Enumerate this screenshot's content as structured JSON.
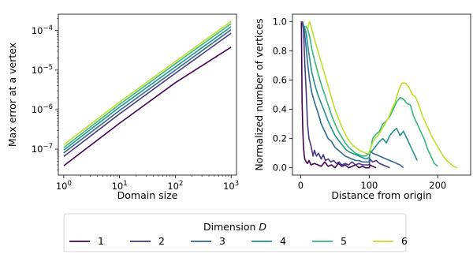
{
  "colors": [
    "#440154",
    "#443983",
    "#31688e",
    "#21918c",
    "#35b779",
    "#bddf26"
  ],
  "legend": {
    "title": "Dimension ",
    "title_symbol": "D",
    "entries": [
      "1",
      "2",
      "3",
      "4",
      "5",
      "6"
    ]
  },
  "chart_data": [
    {
      "type": "line",
      "xlabel": "Domain size",
      "ylabel": "Max error at a vertex",
      "xscale": "log",
      "yscale": "log",
      "xlim": [
        0.8,
        1250
      ],
      "ylim": [
        2.2e-08,
        0.00026
      ],
      "xtick_labels": [
        {
          "value": 1,
          "base": "10",
          "exp": "0"
        },
        {
          "value": 10,
          "base": "10",
          "exp": "1"
        },
        {
          "value": 100,
          "base": "10",
          "exp": "2"
        },
        {
          "value": 1000,
          "base": "10",
          "exp": "3"
        }
      ],
      "ytick_labels": [
        {
          "value": 1e-07,
          "base": "10",
          "exp": "−7"
        },
        {
          "value": 1e-06,
          "base": "10",
          "exp": "−6"
        },
        {
          "value": 1e-05,
          "base": "10",
          "exp": "−5"
        },
        {
          "value": 0.0001,
          "base": "10",
          "exp": "−4"
        }
      ],
      "series": [
        {
          "name": "1",
          "x": [
            1,
            10,
            100,
            1000
          ],
          "y": [
            3.8e-08,
            4.5e-07,
            4.8e-06,
            3.8e-05
          ]
        },
        {
          "name": "2",
          "x": [
            1,
            10,
            100,
            1000
          ],
          "y": [
            6.5e-08,
            7.8e-07,
            8.3e-06,
            8.6e-05
          ]
        },
        {
          "name": "3",
          "x": [
            1,
            10,
            100,
            1000
          ],
          "y": [
            8e-08,
            9.5e-07,
            1e-05,
            0.000105
          ]
        },
        {
          "name": "4",
          "x": [
            1,
            10,
            100,
            1000
          ],
          "y": [
            9.5e-08,
            1.15e-06,
            1.2e-05,
            0.000125
          ]
        },
        {
          "name": "5",
          "x": [
            1,
            10,
            100,
            1000
          ],
          "y": [
            1.1e-07,
            1.35e-06,
            1.45e-05,
            0.00015
          ]
        },
        {
          "name": "6",
          "x": [
            1,
            10,
            100,
            1000
          ],
          "y": [
            1.3e-07,
            1.55e-06,
            1.65e-05,
            0.00017
          ]
        }
      ]
    },
    {
      "type": "line",
      "xlabel": "Distance from origin",
      "ylabel": "Normalized number of vertices",
      "xlim": [
        -12,
        248
      ],
      "ylim": [
        -0.05,
        1.05
      ],
      "xticks": [
        0,
        100,
        200
      ],
      "yticks": [
        0.0,
        0.2,
        0.4,
        0.6,
        0.8,
        1.0
      ],
      "ytick_labels": [
        "0.0",
        "0.2",
        "0.4",
        "0.6",
        "0.8",
        "1.0"
      ],
      "series": [
        {
          "name": "1",
          "x": [
            1,
            2,
            3,
            4,
            5,
            6,
            8,
            10,
            12,
            15,
            20,
            25,
            30,
            35,
            40,
            45,
            50,
            55,
            60,
            65,
            70,
            75,
            80,
            85,
            90,
            95,
            100,
            101,
            105,
            110
          ],
          "y": [
            1.0,
            0.45,
            0.28,
            0.15,
            0.09,
            0.06,
            0.04,
            0.03,
            0.05,
            0.02,
            0.03,
            0.02,
            0.01,
            0.04,
            0.01,
            0.02,
            0.0,
            0.03,
            0.01,
            0.02,
            0.0,
            0.01,
            0.02,
            0.0,
            0.01,
            0.0,
            0.0,
            0.02,
            0.01,
            0.0
          ]
        },
        {
          "name": "2",
          "x": [
            2,
            4,
            6,
            8,
            10,
            12,
            15,
            18,
            20,
            23,
            26,
            30,
            33,
            36,
            40,
            44,
            48,
            52,
            56,
            60,
            65,
            70,
            75,
            80,
            85,
            90,
            95,
            100,
            101,
            105,
            110,
            115,
            120,
            125,
            130
          ],
          "y": [
            1.0,
            0.95,
            0.72,
            0.52,
            0.3,
            0.2,
            0.15,
            0.08,
            0.12,
            0.08,
            0.1,
            0.06,
            0.09,
            0.05,
            0.06,
            0.04,
            0.05,
            0.03,
            0.04,
            0.02,
            0.03,
            0.02,
            0.04,
            0.02,
            0.03,
            0.02,
            0.02,
            0.02,
            0.06,
            0.04,
            0.05,
            0.03,
            0.02,
            0.01,
            0.0
          ]
        },
        {
          "name": "3",
          "x": [
            3,
            5,
            8,
            10,
            13,
            16,
            20,
            25,
            30,
            35,
            40,
            45,
            50,
            55,
            60,
            65,
            70,
            75,
            80,
            85,
            90,
            95,
            100,
            101,
            105,
            110,
            115,
            120,
            125,
            130,
            135,
            140,
            145,
            150
          ],
          "y": [
            1.0,
            0.95,
            0.82,
            0.72,
            0.6,
            0.52,
            0.45,
            0.38,
            0.3,
            0.25,
            0.2,
            0.18,
            0.14,
            0.12,
            0.1,
            0.08,
            0.07,
            0.06,
            0.05,
            0.05,
            0.04,
            0.04,
            0.04,
            0.12,
            0.1,
            0.09,
            0.08,
            0.07,
            0.06,
            0.05,
            0.04,
            0.03,
            0.02,
            0.0
          ]
        },
        {
          "name": "4",
          "x": [
            5,
            8,
            10,
            13,
            16,
            20,
            25,
            30,
            35,
            40,
            45,
            50,
            55,
            60,
            65,
            70,
            75,
            80,
            85,
            90,
            95,
            100,
            101,
            105,
            110,
            115,
            120,
            125,
            130,
            135,
            140,
            145,
            150,
            155,
            160,
            165,
            170
          ],
          "y": [
            0.97,
            0.92,
            0.85,
            0.75,
            0.66,
            0.58,
            0.5,
            0.44,
            0.38,
            0.32,
            0.27,
            0.22,
            0.19,
            0.16,
            0.13,
            0.11,
            0.1,
            0.09,
            0.08,
            0.07,
            0.06,
            0.07,
            0.1,
            0.12,
            0.15,
            0.18,
            0.2,
            0.17,
            0.22,
            0.25,
            0.27,
            0.22,
            0.25,
            0.2,
            0.15,
            0.1,
            0.05
          ]
        },
        {
          "name": "5",
          "x": [
            7,
            10,
            13,
            16,
            20,
            25,
            30,
            35,
            40,
            45,
            50,
            55,
            60,
            65,
            70,
            75,
            80,
            85,
            90,
            95,
            100,
            103,
            105,
            110,
            115,
            120,
            125,
            130,
            135,
            140,
            145,
            150,
            155,
            160,
            165,
            170,
            175,
            180,
            185,
            190,
            195,
            200
          ],
          "y": [
            0.97,
            0.95,
            0.9,
            0.82,
            0.74,
            0.65,
            0.57,
            0.5,
            0.43,
            0.36,
            0.3,
            0.25,
            0.21,
            0.17,
            0.14,
            0.12,
            0.1,
            0.09,
            0.08,
            0.08,
            0.1,
            0.15,
            0.2,
            0.23,
            0.25,
            0.3,
            0.32,
            0.35,
            0.4,
            0.45,
            0.48,
            0.47,
            0.44,
            0.43,
            0.35,
            0.3,
            0.25,
            0.2,
            0.13,
            0.08,
            0.03,
            0.01
          ]
        },
        {
          "name": "6",
          "x": [
            10,
            13,
            16,
            20,
            25,
            30,
            35,
            40,
            45,
            50,
            55,
            60,
            65,
            70,
            75,
            80,
            85,
            90,
            95,
            100,
            103,
            108,
            113,
            118,
            123,
            128,
            133,
            138,
            143,
            148,
            153,
            158,
            163,
            168,
            173,
            178,
            183,
            188,
            193,
            198,
            203,
            208,
            213,
            218,
            223,
            228
          ],
          "y": [
            0.95,
            1.0,
            0.95,
            0.88,
            0.8,
            0.72,
            0.64,
            0.56,
            0.48,
            0.4,
            0.34,
            0.28,
            0.23,
            0.19,
            0.16,
            0.14,
            0.12,
            0.11,
            0.1,
            0.1,
            0.15,
            0.2,
            0.22,
            0.26,
            0.3,
            0.34,
            0.4,
            0.45,
            0.53,
            0.58,
            0.58,
            0.55,
            0.5,
            0.48,
            0.42,
            0.35,
            0.3,
            0.25,
            0.2,
            0.16,
            0.12,
            0.08,
            0.05,
            0.03,
            0.01,
            0.0
          ]
        }
      ]
    }
  ]
}
